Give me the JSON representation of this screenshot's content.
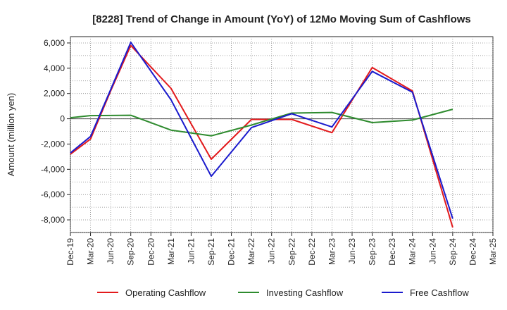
{
  "chart_data": {
    "type": "line",
    "title": "[8228]  Trend of Change in Amount (YoY) of 12Mo Moving Sum of Cashflows",
    "xlabel": "",
    "ylabel": "Amount (million yen)",
    "ylim": [
      -9000,
      6500
    ],
    "yticks": [
      6000,
      4000,
      2000,
      0,
      -2000,
      -4000,
      -6000,
      -8000
    ],
    "ytick_labels": [
      "6,000",
      "4,000",
      "2,000",
      "0",
      "-2,000",
      "-4,000",
      "-6,000",
      "-8,000"
    ],
    "categories": [
      "Dec-19",
      "Mar-20",
      "Jun-20",
      "Sep-20",
      "Dec-20",
      "Mar-21",
      "Jun-21",
      "Sep-21",
      "Dec-21",
      "Mar-22",
      "Jun-22",
      "Sep-22",
      "Dec-22",
      "Mar-23",
      "Jun-23",
      "Sep-23",
      "Dec-23",
      "Mar-24",
      "Jun-24",
      "Sep-24",
      "Dec-24",
      "Mar-25"
    ],
    "grid": true,
    "legend_position": "bottom",
    "series": [
      {
        "name": "Operating Cashflow",
        "color": "#e31a1c",
        "values": [
          -2800,
          -1600,
          2200,
          5800,
          null,
          2400,
          null,
          -3200,
          null,
          -50,
          null,
          -50,
          null,
          -1100,
          null,
          4050,
          null,
          2200,
          null,
          -8600,
          null,
          null
        ]
      },
      {
        "name": "Investing Cashflow",
        "color": "#2e8b2e",
        "values": [
          80,
          250,
          null,
          280,
          null,
          -900,
          null,
          -1350,
          null,
          -500,
          null,
          450,
          null,
          500,
          null,
          -300,
          null,
          -100,
          null,
          750,
          null,
          null
        ]
      },
      {
        "name": "Free Cashflow",
        "color": "#1a1acd",
        "values": [
          -2700,
          -1400,
          2300,
          6050,
          null,
          1500,
          null,
          -4550,
          null,
          -700,
          null,
          400,
          null,
          -650,
          null,
          3750,
          null,
          2100,
          null,
          -7900,
          null,
          null
        ]
      }
    ]
  }
}
